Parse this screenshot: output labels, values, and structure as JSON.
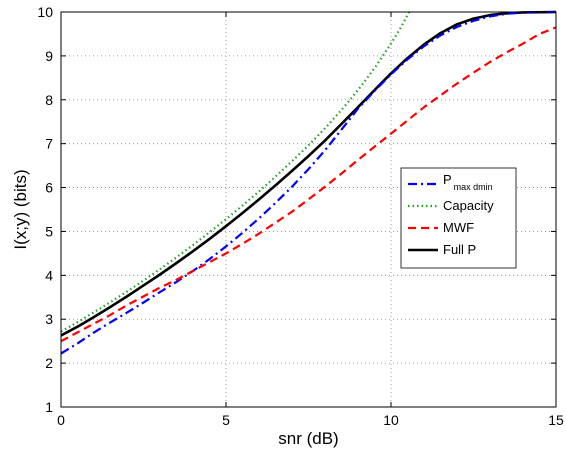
{
  "chart_data": {
    "type": "line",
    "xlabel": "snr (dB)",
    "ylabel": "I(x;y) (bits)",
    "xlim": [
      0,
      15
    ],
    "ylim": [
      1,
      10
    ],
    "xticks": [
      0,
      5,
      10,
      15
    ],
    "yticks": [
      1,
      2,
      3,
      4,
      5,
      6,
      7,
      8,
      9,
      10
    ],
    "grid": true,
    "legend_position": "right",
    "series": [
      {
        "name": "P",
        "name_subscript": "max dmin",
        "color": "#0000ff",
        "dash": "dashdot",
        "points": [
          [
            0,
            2.22
          ],
          [
            0.5,
            2.45
          ],
          [
            1,
            2.7
          ],
          [
            1.5,
            2.93
          ],
          [
            2,
            3.15
          ],
          [
            2.5,
            3.38
          ],
          [
            3,
            3.62
          ],
          [
            3.5,
            3.85
          ],
          [
            4,
            4.1
          ],
          [
            4.5,
            4.37
          ],
          [
            5,
            4.66
          ],
          [
            5.5,
            4.97
          ],
          [
            6,
            5.3
          ],
          [
            6.5,
            5.65
          ],
          [
            7,
            6.02
          ],
          [
            7.5,
            6.42
          ],
          [
            8,
            6.85
          ],
          [
            8.5,
            7.32
          ],
          [
            9,
            7.8
          ],
          [
            9.5,
            8.2
          ],
          [
            10,
            8.58
          ],
          [
            10.5,
            8.92
          ],
          [
            11,
            9.22
          ],
          [
            11.5,
            9.47
          ],
          [
            12,
            9.66
          ],
          [
            12.5,
            9.8
          ],
          [
            13,
            9.9
          ],
          [
            13.5,
            9.96
          ],
          [
            14,
            9.99
          ],
          [
            15,
            10.0
          ]
        ]
      },
      {
        "name": "Capacity",
        "color": "#22a022",
        "dash": "dotted",
        "points": [
          [
            0,
            2.72
          ],
          [
            0.5,
            2.93
          ],
          [
            1,
            3.16
          ],
          [
            1.5,
            3.39
          ],
          [
            2,
            3.63
          ],
          [
            2.5,
            3.88
          ],
          [
            3,
            4.14
          ],
          [
            3.5,
            4.41
          ],
          [
            4,
            4.69
          ],
          [
            4.5,
            4.98
          ],
          [
            5,
            5.28
          ],
          [
            5.5,
            5.59
          ],
          [
            6,
            5.91
          ],
          [
            6.5,
            6.25
          ],
          [
            7,
            6.6
          ],
          [
            7.5,
            6.96
          ],
          [
            8,
            7.35
          ],
          [
            8.5,
            7.77
          ],
          [
            9,
            8.22
          ],
          [
            9.5,
            8.72
          ],
          [
            10,
            9.28
          ],
          [
            10.3,
            9.65
          ],
          [
            10.55,
            10.0
          ]
        ]
      },
      {
        "name": "MWF",
        "color": "#ff0000",
        "dash": "dashed",
        "points": [
          [
            0,
            2.5
          ],
          [
            0.5,
            2.7
          ],
          [
            1,
            2.9
          ],
          [
            1.5,
            3.1
          ],
          [
            2,
            3.32
          ],
          [
            2.5,
            3.52
          ],
          [
            3,
            3.72
          ],
          [
            3.5,
            3.9
          ],
          [
            4,
            4.1
          ],
          [
            4.5,
            4.3
          ],
          [
            5,
            4.5
          ],
          [
            5.5,
            4.72
          ],
          [
            6,
            4.95
          ],
          [
            6.5,
            5.2
          ],
          [
            7,
            5.45
          ],
          [
            7.5,
            5.73
          ],
          [
            8,
            6.02
          ],
          [
            8.5,
            6.32
          ],
          [
            9,
            6.63
          ],
          [
            9.5,
            6.93
          ],
          [
            10,
            7.23
          ],
          [
            10.5,
            7.53
          ],
          [
            11,
            7.83
          ],
          [
            11.5,
            8.1
          ],
          [
            12,
            8.37
          ],
          [
            12.5,
            8.62
          ],
          [
            13,
            8.86
          ],
          [
            13.5,
            9.08
          ],
          [
            14,
            9.28
          ],
          [
            14.5,
            9.5
          ],
          [
            15,
            9.65
          ]
        ]
      },
      {
        "name": "Full P",
        "color": "#000000",
        "dash": "solid",
        "points": [
          [
            0,
            2.63
          ],
          [
            0.5,
            2.83
          ],
          [
            1,
            3.05
          ],
          [
            1.5,
            3.28
          ],
          [
            2,
            3.52
          ],
          [
            2.5,
            3.77
          ],
          [
            3,
            4.02
          ],
          [
            3.5,
            4.28
          ],
          [
            4,
            4.55
          ],
          [
            4.5,
            4.83
          ],
          [
            5,
            5.12
          ],
          [
            5.5,
            5.42
          ],
          [
            6,
            5.73
          ],
          [
            6.5,
            6.05
          ],
          [
            7,
            6.38
          ],
          [
            7.5,
            6.72
          ],
          [
            8,
            7.07
          ],
          [
            8.5,
            7.45
          ],
          [
            9,
            7.83
          ],
          [
            9.5,
            8.22
          ],
          [
            10,
            8.6
          ],
          [
            10.5,
            8.95
          ],
          [
            11,
            9.26
          ],
          [
            11.5,
            9.52
          ],
          [
            12,
            9.72
          ],
          [
            12.5,
            9.85
          ],
          [
            13,
            9.93
          ],
          [
            13.5,
            9.97
          ],
          [
            14,
            9.99
          ],
          [
            15,
            10.0
          ]
        ]
      }
    ]
  }
}
